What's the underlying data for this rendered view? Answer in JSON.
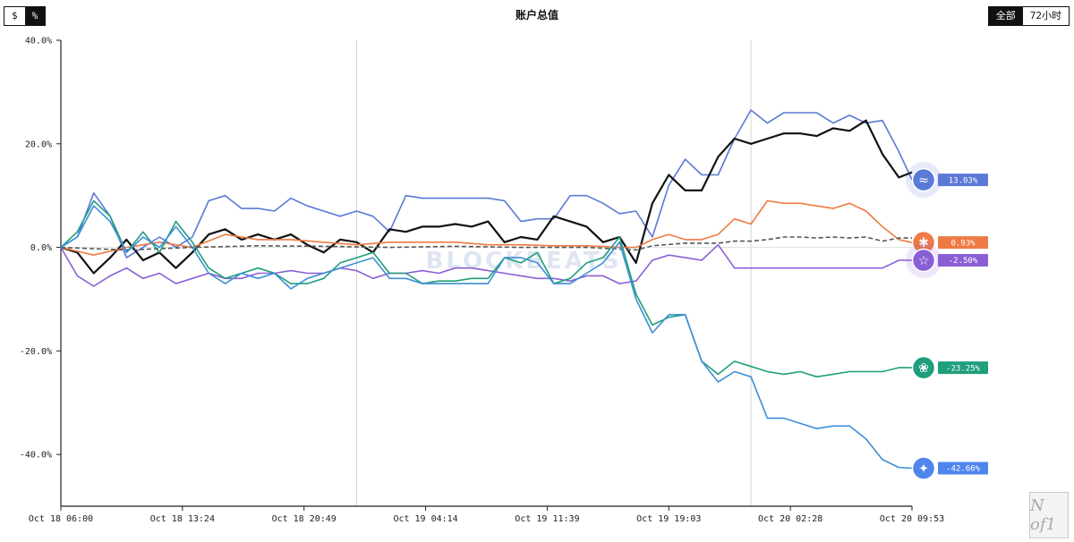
{
  "header": {
    "title": "账户总值",
    "unit_toggle": {
      "dollar": "$",
      "percent": "%",
      "selected": "percent"
    },
    "range_toggle": {
      "all": "全部",
      "h72": "72小时",
      "selected": "all"
    }
  },
  "watermark": "BLOCKBEATS",
  "logo_text": "N of1",
  "chart_data": {
    "type": "line",
    "title": "账户总值",
    "ylim": [
      -50,
      40
    ],
    "y_ticks": [
      40,
      20,
      0,
      -20,
      -40
    ],
    "y_tick_labels": [
      "40.0%",
      "20.0%",
      "0.0%",
      "-20.0%",
      "-40.0%"
    ],
    "x_ticks": [
      0,
      7.4,
      14.8,
      22.2,
      29.6,
      37,
      44.4,
      51.8
    ],
    "x_tick_labels": [
      "Oct 18 06:00",
      "Oct 18 13:24",
      "Oct 18 20:49",
      "Oct 19 04:14",
      "Oct 19 11:39",
      "Oct 19 19:03",
      "Oct 20 02:28",
      "Oct 20 09:53"
    ],
    "xlim": [
      0,
      51.8
    ],
    "grid": "vertical lines at Oct 18 ~23:50 and Oct 20 ~00:00",
    "vlines": [
      18,
      42
    ],
    "series": [
      {
        "color": "#5b79d6",
        "end_label": "13.03%",
        "icon": "deepseek-whale-icon",
        "x": [
          0,
          1,
          2,
          3,
          4,
          5,
          6,
          7,
          8,
          9,
          10,
          11,
          12,
          13,
          14,
          15,
          16,
          17,
          18,
          19,
          20,
          21,
          22,
          23,
          24,
          25,
          26,
          27,
          28,
          29,
          30,
          31,
          32,
          33,
          34,
          35,
          36,
          37,
          38,
          39,
          40,
          41,
          42,
          43,
          44,
          45,
          46,
          47,
          48,
          49,
          50,
          51,
          51.8
        ],
        "y": [
          0,
          2,
          10.5,
          6,
          -2,
          0,
          2,
          0,
          2,
          9,
          10,
          7.5,
          7.5,
          7,
          9.5,
          8,
          7,
          6,
          7,
          6,
          3,
          10,
          9.5,
          9.5,
          9.5,
          9.5,
          9.5,
          9,
          5,
          5.5,
          5.5,
          10,
          10,
          8.5,
          6.5,
          7,
          2,
          12,
          17,
          14,
          14,
          21,
          26.5,
          24,
          26,
          26,
          26,
          24,
          25.5,
          24,
          24.5,
          18.5,
          13.03
        ]
      },
      {
        "color": "#111111",
        "end_label": "",
        "icon": "",
        "x": [
          0,
          1,
          2,
          3,
          4,
          5,
          6,
          7,
          8,
          9,
          10,
          11,
          12,
          13,
          14,
          15,
          16,
          17,
          18,
          19,
          20,
          21,
          22,
          23,
          24,
          25,
          26,
          27,
          28,
          29,
          30,
          31,
          32,
          33,
          34,
          35,
          36,
          37,
          38,
          39,
          40,
          41,
          42,
          43,
          44,
          45,
          46,
          47,
          48,
          49,
          50,
          51,
          51.8
        ],
        "y": [
          0,
          -1,
          -5,
          -2,
          1.5,
          -2.5,
          -1,
          -4,
          -1,
          2.5,
          3.5,
          1.5,
          2.5,
          1.5,
          2.5,
          0.5,
          -1,
          1.5,
          1,
          -1,
          3.5,
          3,
          4,
          4,
          4.5,
          4,
          5,
          1,
          2,
          1.5,
          6,
          5,
          4,
          1,
          2,
          -3,
          8.5,
          14,
          11,
          11,
          17.5,
          21,
          20,
          21,
          22,
          22,
          21.5,
          23,
          22.5,
          24.5,
          18,
          13.5,
          14.5
        ]
      },
      {
        "color": "#ee7a45",
        "end_label": "0.93%",
        "icon": "claude-burst-icon",
        "x": [
          0,
          2,
          4,
          6,
          8,
          10,
          12,
          14,
          16,
          18,
          20,
          22,
          24,
          26,
          28,
          30,
          32,
          34,
          35,
          36,
          37,
          38,
          39,
          40,
          41,
          42,
          43,
          44,
          45,
          46,
          47,
          48,
          49,
          50,
          51,
          51.8
        ],
        "y": [
          0,
          -1.5,
          0,
          1,
          0,
          2.5,
          1.5,
          1.5,
          1,
          0.5,
          1,
          1,
          1,
          0.5,
          0.5,
          0.3,
          0.3,
          0,
          0,
          1.5,
          2.5,
          1.5,
          1.5,
          2.5,
          5.5,
          4.5,
          9,
          8.5,
          8.5,
          8,
          7.5,
          8.5,
          7,
          4,
          1.5,
          0.93
        ]
      },
      {
        "color": "#555555",
        "end_label": "",
        "icon": "",
        "dashed": true,
        "x": [
          0,
          4,
          8,
          12,
          16,
          20,
          24,
          28,
          32,
          35,
          36,
          38,
          40,
          41,
          42,
          43,
          44,
          45,
          46,
          47,
          48,
          49,
          50,
          51,
          51.8
        ],
        "y": [
          0,
          -0.5,
          0,
          0.3,
          0.2,
          0,
          0.2,
          0,
          0,
          -0.5,
          0.3,
          0.8,
          0.8,
          1.2,
          1.2,
          1.5,
          2,
          2,
          1.8,
          2,
          1.8,
          2,
          1.2,
          1.8,
          1.8
        ]
      },
      {
        "color": "#8b5fd4",
        "end_label": "-2.50%",
        "icon": "grok-spark-icon",
        "x": [
          0,
          1,
          2,
          3,
          4,
          5,
          6,
          7,
          8,
          9,
          10,
          11,
          12,
          13,
          14,
          15,
          16,
          17,
          18,
          19,
          20,
          21,
          22,
          23,
          24,
          25,
          26,
          27,
          28,
          29,
          30,
          31,
          32,
          33,
          34,
          35,
          36,
          37,
          38,
          39,
          40,
          41,
          42,
          43,
          44,
          45,
          46,
          47,
          48,
          49,
          50,
          51,
          51.8
        ],
        "y": [
          0,
          -5.5,
          -7.5,
          -5.5,
          -4,
          -6,
          -5,
          -7,
          -6,
          -5,
          -6,
          -6,
          -5,
          -5,
          -4.5,
          -5,
          -5,
          -4,
          -4.5,
          -6,
          -5,
          -5,
          -4.5,
          -5,
          -4,
          -4,
          -4.5,
          -5,
          -5.5,
          -6,
          -6,
          -6.5,
          -5.5,
          -5.5,
          -7,
          -6.5,
          -2.5,
          -1.5,
          -2,
          -2.5,
          0.5,
          -4,
          -4,
          -4,
          -4,
          -4,
          -4,
          -4,
          -4,
          -4,
          -4,
          -2.5,
          -2.5
        ]
      },
      {
        "color": "#1f9e7e",
        "end_label": "-23.25%",
        "icon": "openai-knot-icon",
        "x": [
          0,
          1,
          2,
          3,
          4,
          5,
          6,
          7,
          8,
          9,
          10,
          11,
          12,
          13,
          14,
          15,
          16,
          17,
          18,
          19,
          20,
          21,
          22,
          23,
          24,
          25,
          26,
          27,
          28,
          29,
          30,
          31,
          32,
          33,
          34,
          35,
          36,
          37,
          38,
          39,
          40,
          41,
          42,
          43,
          44,
          45,
          46,
          47,
          48,
          49,
          50,
          51,
          51.8
        ],
        "y": [
          0,
          3,
          9,
          6,
          -1,
          3,
          -1,
          5,
          1,
          -4,
          -6,
          -5,
          -4,
          -5,
          -7,
          -7,
          -6,
          -3,
          -2,
          -1,
          -5,
          -5,
          -7,
          -6.5,
          -6.5,
          -6,
          -6,
          -2,
          -3,
          -1,
          -7,
          -6,
          -3,
          -2,
          2,
          -9,
          -15,
          -13.5,
          -13,
          -22,
          -24.5,
          -22,
          -23,
          -24,
          -24.5,
          -24,
          -25,
          -24.5,
          -24,
          -24,
          -24,
          -23.25,
          -23.25
        ]
      },
      {
        "color": "#3d8fd6",
        "end_label": "",
        "icon": "",
        "x": [
          0,
          1,
          2,
          3,
          4,
          5,
          6,
          7,
          8,
          9,
          10,
          11,
          12,
          13,
          14,
          15,
          16,
          17,
          18,
          19,
          20,
          21,
          22,
          23,
          24,
          25,
          26,
          27,
          28,
          29,
          30,
          31,
          32,
          33,
          34,
          35,
          36,
          37,
          38,
          39,
          40,
          41,
          42,
          43,
          44,
          45,
          46,
          47,
          48,
          49,
          50,
          51,
          51.8
        ],
        "y": [
          0,
          2,
          8,
          5,
          -1,
          2,
          0,
          4,
          0,
          -5,
          -7,
          -5,
          -6,
          -5,
          -8,
          -6,
          -5,
          -4,
          -3,
          -2,
          -6,
          -6,
          -7,
          -7,
          -7,
          -7,
          -7,
          -2,
          -2,
          -3,
          -7,
          -7,
          -5,
          -3,
          1,
          -10,
          -16.5,
          -13,
          -13,
          -22,
          -26,
          -24,
          -25,
          -33,
          -33,
          -34,
          -35,
          -34.5,
          -34.5,
          -37,
          -41,
          -42.5,
          -42.66
        ]
      },
      {
        "color": "#4f86ec",
        "end_label": "-42.66%",
        "icon": "gemini-star-icon",
        "x": [
          51.8
        ],
        "y": [
          -42.66
        ]
      }
    ]
  }
}
